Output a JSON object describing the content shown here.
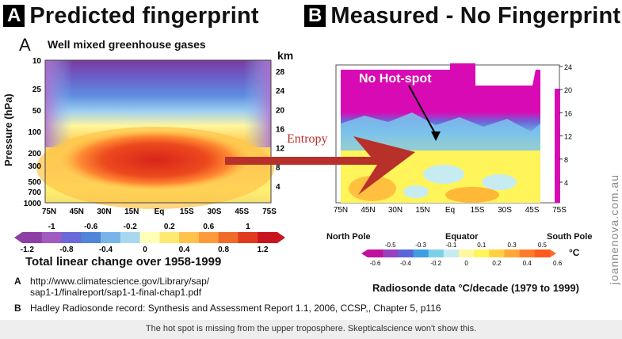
{
  "panel_a": {
    "badge": "A",
    "header": "Predicted fingerprint",
    "panel_letter": "A",
    "subtitle": "Well mixed greenhouse gases",
    "y_label": "Pressure (hPa)",
    "km_label": "km",
    "pressure_ticks": [
      "10",
      "25",
      "50",
      "100",
      "200",
      "300",
      "500",
      "700",
      "1000"
    ],
    "km_ticks": [
      "28",
      "24",
      "20",
      "16",
      "12",
      "8",
      "4"
    ],
    "x_ticks": [
      "75N",
      "45N",
      "30N",
      "15N",
      "Eq",
      "15S",
      "30S",
      "45S",
      "75S"
    ],
    "colorbar_top_ticks": [
      "-1",
      "-0.6",
      "-0.2",
      "0.2",
      "0.6",
      "1"
    ],
    "colorbar_bottom_ticks": [
      "-1.2",
      "-0.8",
      "-0.4",
      "0",
      "0.4",
      "0.8",
      "1.2"
    ],
    "colorbar_title": "Total linear change over 1958-1999"
  },
  "panel_b": {
    "badge": "B",
    "header": "Measured - No Fingerprint",
    "annotation": "No Hot-spot",
    "km_ticks": [
      "24",
      "20",
      "16",
      "12",
      "8",
      "4"
    ],
    "x_ticks": [
      "75N",
      "45N",
      "30N",
      "15N",
      "Eq",
      "15S",
      "30S",
      "45S",
      "75S"
    ],
    "region_labels": {
      "left": "North Pole",
      "center": "Equator",
      "right": "South Pole"
    },
    "colorbar_top_ticks": [
      "-0.5",
      "-0.3",
      "-0.1",
      "0.1",
      "0.3",
      "0.5"
    ],
    "colorbar_bottom_ticks": [
      "-0.6",
      "-0.4",
      "-0.2",
      "0",
      "0.2",
      "0.4",
      "0.6"
    ],
    "unit": "°C",
    "colorbar_title": "Radiosonde data °C/decade (1979 to 1999)"
  },
  "arrow_label": "Entropy",
  "references": {
    "a_marker": "A",
    "a_line1": "http://www.climatescience.gov/Library/sap/",
    "a_line2": "sap1-1/finalreport/sap1-1-final-chap1.pdf",
    "b_marker": "B",
    "b_line": "Hadley Radiosonde record: Synthesis and Assessment Report 1.1, 2006, CCSP,, Chapter 5, p116"
  },
  "caption": "The hot spot is missing from the upper troposphere. Skepticalscience won't show this.",
  "watermark": "joannenova.com.au",
  "colors": {
    "purple": "#8e3fa6",
    "blue": "#4f86d8",
    "lightblue": "#9fd0f0",
    "cyan": "#c6ecf2",
    "yellow": "#fff45a",
    "orange": "#ff9a3c",
    "red": "#e83a1f",
    "magenta": "#d60ab0",
    "arrow": "#b8302a",
    "caption_bg": "#eeeeee"
  },
  "chart_data": [
    {
      "type": "heatmap",
      "title": "Well mixed greenhouse gases",
      "ylabel": "Pressure (hPa)",
      "x_categories": [
        "75N",
        "45N",
        "30N",
        "15N",
        "Eq",
        "15S",
        "30S",
        "45S",
        "75S"
      ],
      "y_pressure_hpa": [
        10,
        25,
        50,
        100,
        200,
        300,
        500,
        700,
        1000
      ],
      "y2_km": [
        28,
        24,
        20,
        16,
        12,
        8,
        4
      ],
      "colorbar_range": [
        -1.2,
        1.2
      ],
      "colorbar_label": "Total linear change over 1958-1999",
      "features": {
        "tropical_upper_troposphere_max": 1.2,
        "stratosphere_min": -1.0
      }
    },
    {
      "type": "heatmap",
      "title": "Radiosonde data °C/decade (1979 to 1999)",
      "x_categories": [
        "75N",
        "45N",
        "30N",
        "15N",
        "Eq",
        "15S",
        "30S",
        "45S",
        "75S"
      ],
      "y_km": [
        4,
        8,
        12,
        16,
        20,
        24
      ],
      "colorbar_range": [
        -0.6,
        0.6
      ],
      "unit": "°C",
      "features": {
        "stratosphere": -0.6,
        "troposphere": 0.2
      },
      "annotation": "No Hot-spot"
    }
  ]
}
